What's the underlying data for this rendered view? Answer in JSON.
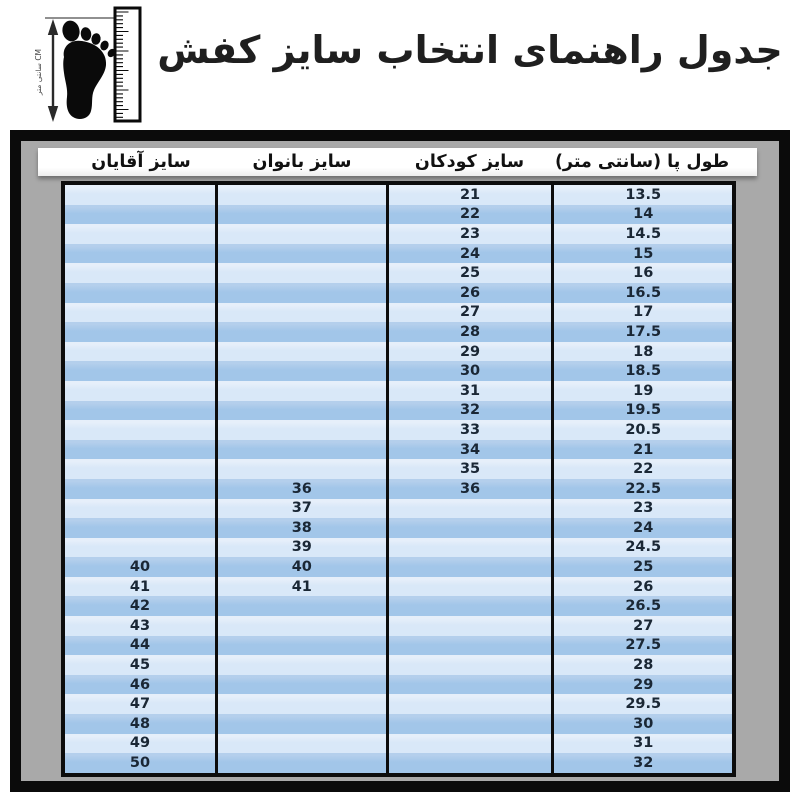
{
  "page": {
    "title": "جدول راهنمای انتخاب سایز کفش"
  },
  "logo": {
    "name": "foot-measure-logo",
    "ruler_label": "سانتی متر CM"
  },
  "colors": {
    "frame_bg": "#a9a9a9",
    "frame_border": "#0b0b0b",
    "header_bg": "#ffffff",
    "row_light": "#d9e8f8",
    "row_light_hi": "#e6effa",
    "row_dark": "#a2c6e9",
    "row_dark_hi": "#b4cfec",
    "cell_text": "#1a2735"
  },
  "chart_data": {
    "type": "table",
    "title": "جدول راهنمای انتخاب سایز کفش",
    "direction": "rtl",
    "columns": [
      "سایز آقایان",
      "سایز بانوان",
      "سایز کودکان",
      "طول پا (سانتی متر)"
    ],
    "column_ids": [
      "men-size",
      "women-size",
      "kids-size",
      "foot-length-cm"
    ],
    "rows": [
      [
        "",
        "",
        "21",
        "13.5"
      ],
      [
        "",
        "",
        "22",
        "14"
      ],
      [
        "",
        "",
        "23",
        "14.5"
      ],
      [
        "",
        "",
        "24",
        "15"
      ],
      [
        "",
        "",
        "25",
        "16"
      ],
      [
        "",
        "",
        "26",
        "16.5"
      ],
      [
        "",
        "",
        "27",
        "17"
      ],
      [
        "",
        "",
        "28",
        "17.5"
      ],
      [
        "",
        "",
        "29",
        "18"
      ],
      [
        "",
        "",
        "30",
        "18.5"
      ],
      [
        "",
        "",
        "31",
        "19"
      ],
      [
        "",
        "",
        "32",
        "19.5"
      ],
      [
        "",
        "",
        "33",
        "20.5"
      ],
      [
        "",
        "",
        "34",
        "21"
      ],
      [
        "",
        "",
        "35",
        "22"
      ],
      [
        "",
        "36",
        "36",
        "22.5"
      ],
      [
        "",
        "37",
        "",
        "23"
      ],
      [
        "",
        "38",
        "",
        "24"
      ],
      [
        "",
        "39",
        "",
        "24.5"
      ],
      [
        "40",
        "40",
        "",
        "25"
      ],
      [
        "41",
        "41",
        "",
        "26"
      ],
      [
        "42",
        "",
        "",
        "26.5"
      ],
      [
        "43",
        "",
        "",
        "27"
      ],
      [
        "44",
        "",
        "",
        "27.5"
      ],
      [
        "45",
        "",
        "",
        "28"
      ],
      [
        "46",
        "",
        "",
        "29"
      ],
      [
        "47",
        "",
        "",
        "29.5"
      ],
      [
        "48",
        "",
        "",
        "30"
      ],
      [
        "49",
        "",
        "",
        "31"
      ],
      [
        "50",
        "",
        "",
        "32"
      ]
    ]
  }
}
